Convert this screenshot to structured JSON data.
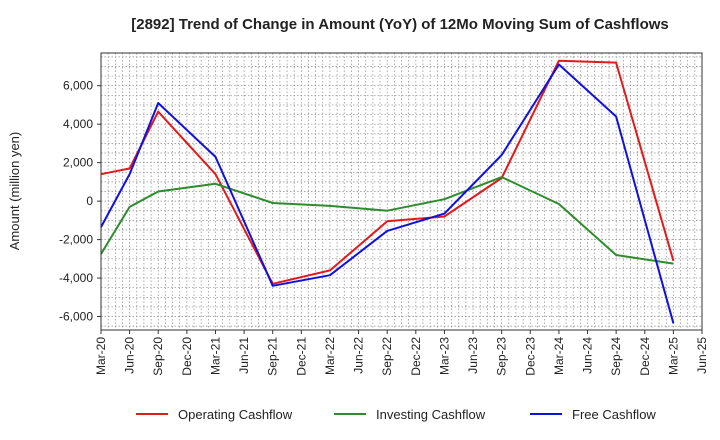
{
  "chart_data": {
    "type": "line",
    "title": "[2892]  Trend of Change in Amount (YoY) of 12Mo Moving Sum of Cashflows",
    "xlabel": "",
    "ylabel": "Amount (million yen)",
    "categories": [
      "Mar-20",
      "Jun-20",
      "Sep-20",
      "Dec-20",
      "Mar-21",
      "Jun-21",
      "Sep-21",
      "Dec-21",
      "Mar-22",
      "Jun-22",
      "Sep-22",
      "Dec-22",
      "Mar-23",
      "Jun-23",
      "Sep-23",
      "Dec-23",
      "Mar-24",
      "Jun-24",
      "Sep-24",
      "Dec-24",
      "Mar-25",
      "Jun-25"
    ],
    "ylim": [
      -6700,
      7700
    ],
    "yticks": [
      -6000,
      -4000,
      -2000,
      0,
      2000,
      4000,
      6000
    ],
    "ytick_labels": [
      "-6,000",
      "-4,000",
      "-2,000",
      "0",
      "2,000",
      "4,000",
      "6,000"
    ],
    "grid": true,
    "legend_position": "bottom",
    "series": [
      {
        "name": "Operating Cashflow",
        "color": "#e31a1c",
        "values": [
          1400,
          1700,
          4650,
          null,
          1400,
          null,
          -4300,
          null,
          -3600,
          null,
          -1050,
          null,
          -800,
          null,
          1200,
          null,
          7300,
          null,
          7200,
          null,
          -3100,
          null
        ]
      },
      {
        "name": "Investing Cashflow",
        "color": "#2e8b2e",
        "values": [
          -2750,
          -300,
          500,
          null,
          900,
          null,
          -100,
          null,
          -250,
          null,
          -500,
          null,
          100,
          null,
          1250,
          null,
          -150,
          null,
          -2800,
          null,
          -3250,
          null
        ]
      },
      {
        "name": "Free Cashflow",
        "color": "#1111dd",
        "values": [
          -1350,
          1400,
          5100,
          null,
          2300,
          null,
          -4400,
          null,
          -3850,
          null,
          -1550,
          null,
          -650,
          null,
          2400,
          null,
          7100,
          null,
          4400,
          null,
          -6350,
          null
        ]
      }
    ]
  }
}
